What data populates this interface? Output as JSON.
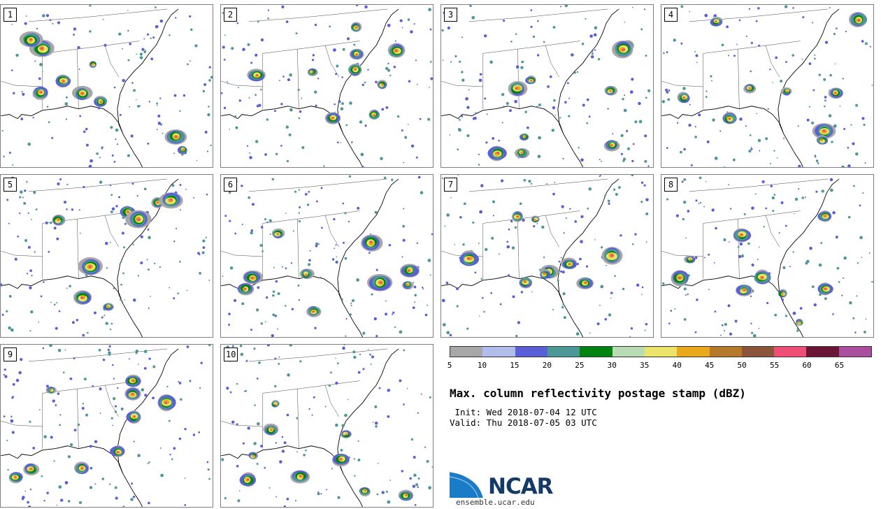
{
  "panels": [
    {
      "label": "1"
    },
    {
      "label": "2"
    },
    {
      "label": "3"
    },
    {
      "label": "4"
    },
    {
      "label": "5"
    },
    {
      "label": "6"
    },
    {
      "label": "7"
    },
    {
      "label": "8"
    },
    {
      "label": "9"
    },
    {
      "label": "10"
    }
  ],
  "colorbar": {
    "ticks": [
      "5",
      "10",
      "15",
      "20",
      "25",
      "30",
      "35",
      "40",
      "45",
      "50",
      "55",
      "60",
      "65"
    ],
    "colors": [
      "#a7a7a7",
      "#b1bceb",
      "#5a5fd8",
      "#4b9896",
      "#00840f",
      "#b8dcb4",
      "#ece46a",
      "#eaa91c",
      "#b7792c",
      "#8a5538",
      "#ef4f77",
      "#6a1737",
      "#a94f9d"
    ]
  },
  "title": "Max. column reflectivity postage stamp (dBZ)",
  "init_line": " Init: Wed 2018-07-04 12 UTC",
  "valid_line": "Valid: Thu 2018-07-05 03 UTC",
  "logo": {
    "text": "NCAR",
    "website": "ensemble.ucar.edu"
  }
}
